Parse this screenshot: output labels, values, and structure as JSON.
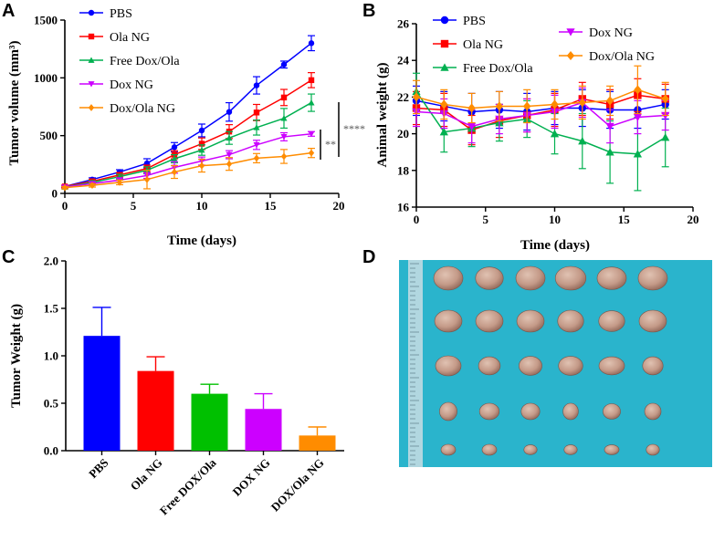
{
  "chart_data": [
    {
      "panel": "A",
      "type": "line",
      "xlabel": "Time (days)",
      "ylabel": "Tumor volume (mm³)",
      "xlim": [
        0,
        20
      ],
      "ylim": [
        0,
        1500
      ],
      "xticks": [
        "0",
        "5",
        "10",
        "15",
        "20"
      ],
      "yticks": [
        "0",
        "500",
        "1000",
        "1500"
      ],
      "x": [
        0,
        2,
        4,
        6,
        8,
        10,
        12,
        14,
        16,
        18
      ],
      "series": [
        {
          "name": "PBS",
          "color": "#0000ff",
          "marker": "circle",
          "values": [
            60,
            120,
            185,
            260,
            400,
            545,
            705,
            935,
            1115,
            1300
          ],
          "errors": [
            10,
            15,
            20,
            40,
            40,
            55,
            80,
            75,
            30,
            65
          ]
        },
        {
          "name": "Ola NG",
          "color": "#ff0000",
          "marker": "square",
          "values": [
            60,
            105,
            160,
            215,
            335,
            430,
            535,
            700,
            830,
            980
          ],
          "errors": [
            10,
            15,
            20,
            30,
            35,
            50,
            60,
            70,
            70,
            65
          ]
        },
        {
          "name": "Free Dox/Ola",
          "color": "#00b050",
          "marker": "triangle",
          "values": [
            55,
            95,
            145,
            200,
            300,
            375,
            480,
            570,
            650,
            785
          ],
          "errors": [
            10,
            15,
            20,
            30,
            35,
            45,
            55,
            65,
            85,
            75
          ]
        },
        {
          "name": "Dox NG",
          "color": "#cc00ff",
          "marker": "triangle-down",
          "values": [
            55,
            85,
            115,
            155,
            225,
            280,
            335,
            420,
            490,
            515
          ],
          "errors": [
            10,
            15,
            20,
            25,
            50,
            35,
            35,
            40,
            35,
            20
          ]
        },
        {
          "name": "Dox/Ola NG",
          "color": "#ff8c00",
          "marker": "diamond",
          "values": [
            50,
            70,
            95,
            120,
            185,
            240,
            255,
            305,
            320,
            350
          ],
          "errors": [
            10,
            15,
            20,
            80,
            55,
            55,
            55,
            40,
            60,
            40
          ]
        }
      ],
      "annotations": [
        "**",
        "****"
      ]
    },
    {
      "panel": "B",
      "type": "line",
      "xlabel": "Time (days)",
      "ylabel": "Animal weight (g)",
      "xlim": [
        0,
        20
      ],
      "ylim": [
        16,
        26
      ],
      "xticks": [
        "0",
        "5",
        "10",
        "15",
        "20"
      ],
      "yticks": [
        "16",
        "18",
        "20",
        "22",
        "24",
        "26"
      ],
      "x": [
        0,
        2,
        4,
        6,
        8,
        10,
        12,
        14,
        16,
        18
      ],
      "series": [
        {
          "name": "PBS",
          "color": "#0000ff",
          "marker": "circle",
          "values": [
            21.8,
            21.5,
            21.2,
            21.3,
            21.2,
            21.4,
            21.4,
            21.3,
            21.3,
            21.6
          ],
          "errors": [
            0.8,
            0.8,
            1.0,
            1.0,
            1.0,
            0.9,
            1.0,
            1.0,
            1.0,
            0.8
          ]
        },
        {
          "name": "Ola NG",
          "color": "#ff0000",
          "marker": "square",
          "values": [
            21.4,
            21.3,
            20.2,
            20.7,
            21.0,
            21.3,
            21.9,
            21.6,
            22.1,
            21.9
          ],
          "errors": [
            0.9,
            0.9,
            0.8,
            0.9,
            0.9,
            0.9,
            0.9,
            0.8,
            0.9,
            0.8
          ]
        },
        {
          "name": "Free Dox/Ola",
          "color": "#00b050",
          "marker": "triangle",
          "values": [
            22.3,
            20.1,
            20.3,
            20.6,
            20.8,
            20.0,
            19.6,
            19.0,
            18.9,
            19.8
          ],
          "errors": [
            1.0,
            1.1,
            1.0,
            1.0,
            1.0,
            1.1,
            1.5,
            1.7,
            2.0,
            1.6
          ]
        },
        {
          "name": "Dox NG",
          "color": "#cc00ff",
          "marker": "triangle-down",
          "values": [
            21.2,
            21.1,
            20.4,
            20.8,
            21.0,
            21.2,
            21.7,
            20.4,
            20.9,
            21.0
          ],
          "errors": [
            0.8,
            0.8,
            0.9,
            0.8,
            0.9,
            0.9,
            0.8,
            0.9,
            0.9,
            0.8
          ]
        },
        {
          "name": "Dox/Ola NG",
          "color": "#ff8c00",
          "marker": "diamond",
          "values": [
            22.0,
            21.6,
            21.4,
            21.5,
            21.5,
            21.6,
            21.7,
            21.8,
            22.4,
            21.9
          ],
          "errors": [
            0.9,
            0.8,
            0.8,
            0.8,
            0.9,
            0.8,
            0.9,
            0.8,
            1.3,
            0.9
          ]
        }
      ]
    },
    {
      "panel": "C",
      "type": "bar",
      "ylabel": "Tumor Weight (g)",
      "ylim": [
        0,
        2.0
      ],
      "yticks": [
        "0.0",
        "0.5",
        "1.0",
        "1.5",
        "2.0"
      ],
      "categories": [
        "PBS",
        "Ola NG",
        "Free DOX/Ola",
        "DOX NG",
        "DOX/Ola NG"
      ],
      "values": [
        1.21,
        0.84,
        0.6,
        0.44,
        0.16
      ],
      "errors": [
        0.3,
        0.15,
        0.1,
        0.16,
        0.09
      ],
      "colors": [
        "#0000ff",
        "#ff0000",
        "#00c000",
        "#cc00ff",
        "#ff8c00"
      ]
    }
  ],
  "panel_d": {
    "label": "D",
    "background_color": "#2ab4cc",
    "rows": 5,
    "columns": 6
  }
}
